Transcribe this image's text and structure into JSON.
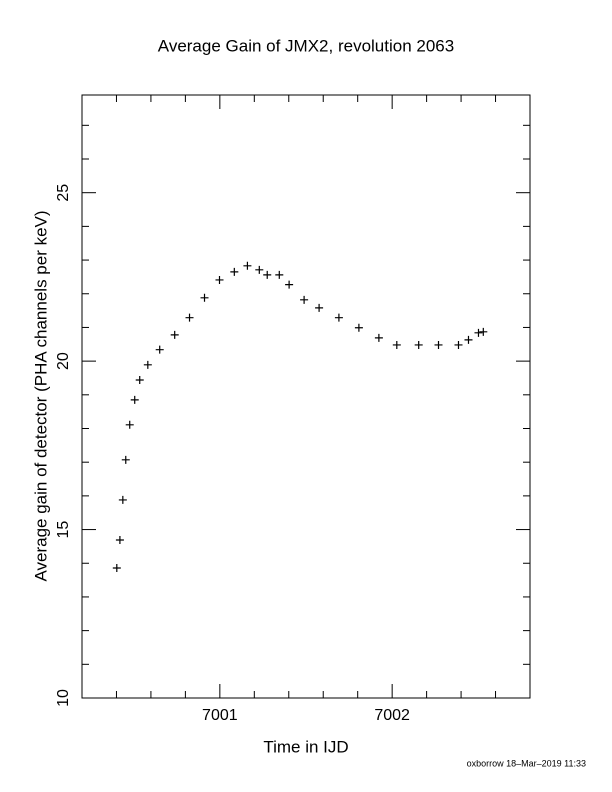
{
  "chart_data": {
    "type": "scatter",
    "title": "Average Gain of JMX2, revolution 2063",
    "x_label": "Time in IJD",
    "y_label": "Average gain of detector (PHA channels per keV)",
    "footer": "oxborrow 18–Mar–2019 11:33",
    "xlim": [
      7000.2,
      7002.8
    ],
    "ylim": [
      10,
      27.9
    ],
    "xticks": [
      7001,
      7002
    ],
    "yticks": [
      10,
      15,
      20,
      25
    ],
    "xticks_minor": [
      7000.4,
      7000.6,
      7000.8,
      7001.2,
      7001.4,
      7001.6,
      7001.8,
      7002.2,
      7002.4,
      7002.6
    ],
    "yticks_minor": [
      11,
      12,
      13,
      14,
      16,
      17,
      18,
      19,
      21,
      22,
      23,
      24,
      26,
      27
    ],
    "series": [
      {
        "color": "#000000",
        "marker": "+",
        "x": [
          7000.402,
          7000.42,
          7000.437,
          7000.454,
          7000.477,
          7000.506,
          7000.535,
          7000.582,
          7000.651,
          7000.738,
          7000.824,
          7000.911,
          7000.998,
          7001.084,
          7001.16,
          7001.229,
          7001.275,
          7001.345,
          7001.402,
          7001.489,
          7001.576,
          7001.691,
          7001.807,
          7001.923,
          7002.027,
          7002.154,
          7002.269,
          7002.385,
          7002.443,
          7002.501,
          7002.529
        ],
        "values": [
          13.86,
          14.69,
          15.88,
          17.07,
          18.11,
          18.85,
          19.44,
          19.89,
          20.34,
          20.78,
          21.29,
          21.88,
          22.41,
          22.65,
          22.83,
          22.71,
          22.56,
          22.56,
          22.27,
          21.82,
          21.58,
          21.29,
          20.99,
          20.69,
          20.48,
          20.48,
          20.48,
          20.48,
          20.63,
          20.84,
          20.87
        ]
      }
    ]
  }
}
